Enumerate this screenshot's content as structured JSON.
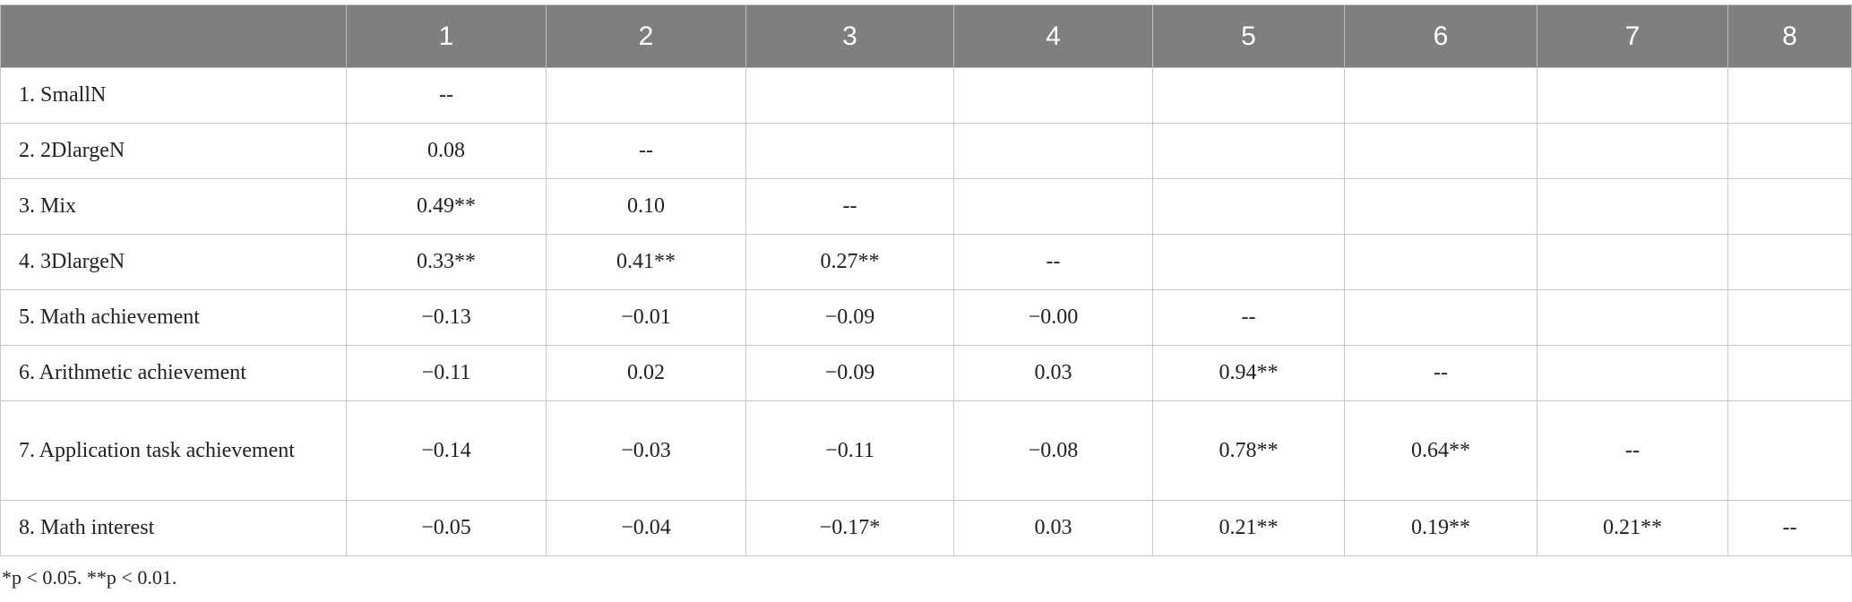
{
  "table": {
    "columns": [
      "1",
      "2",
      "3",
      "4",
      "5",
      "6",
      "7",
      "8"
    ],
    "rows": [
      {
        "label": "1. SmallN",
        "cells": [
          "--"
        ]
      },
      {
        "label": "2. 2DlargeN",
        "cells": [
          "0.08",
          "--"
        ]
      },
      {
        "label": "3. Mix",
        "cells": [
          "0.49**",
          "0.10",
          "--"
        ]
      },
      {
        "label": "4. 3DlargeN",
        "cells": [
          "0.33**",
          "0.41**",
          "0.27**",
          "--"
        ]
      },
      {
        "label": "5. Math achievement",
        "cells": [
          "−0.13",
          "−0.01",
          "−0.09",
          "−0.00",
          "--"
        ]
      },
      {
        "label": "6. Arithmetic achievement",
        "cells": [
          "−0.11",
          "0.02",
          "−0.09",
          "0.03",
          "0.94**",
          "--"
        ]
      },
      {
        "label": "7. Application task achievement",
        "cells": [
          "−0.14",
          "−0.03",
          "−0.11",
          "−0.08",
          "0.78**",
          "0.64**",
          "--"
        ]
      },
      {
        "label": "8. Math interest",
        "cells": [
          "−0.05",
          "−0.04",
          "−0.17*",
          "0.03",
          "0.21**",
          "0.19**",
          "0.21**",
          "--"
        ]
      }
    ],
    "footnote": "*p < 0.05. **p < 0.01."
  }
}
